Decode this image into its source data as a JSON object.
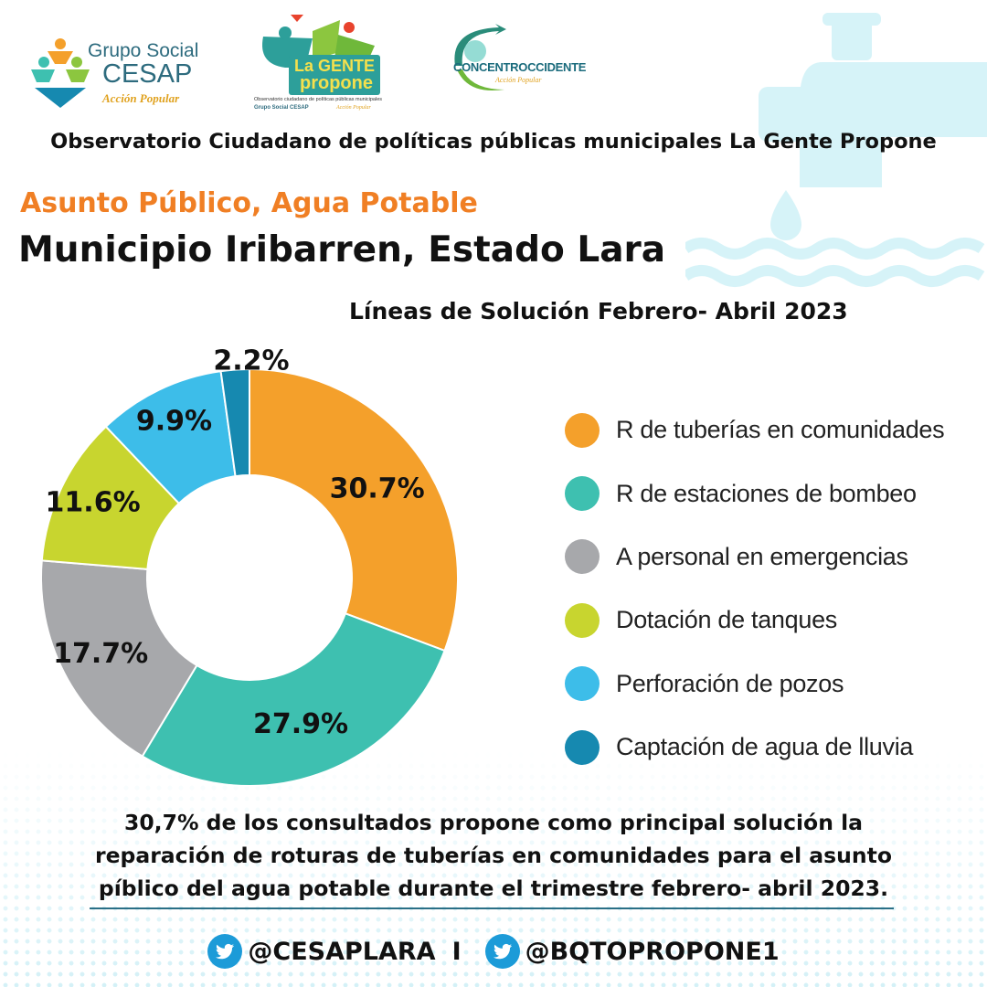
{
  "logos": {
    "cesap": {
      "line1": "Grupo Social",
      "line2": "CESAP",
      "line3": "Acción Popular"
    },
    "gente": {
      "line1": "La GENTE",
      "line2": "propone",
      "tagline": "Observatorio ciudadano de políticas públicas municipales",
      "footer_left": "Grupo Social CESAP",
      "footer_right": "Acción Popular"
    },
    "concentro": {
      "name": "CONCENTROCCIDENTE",
      "tagline": "Acción Popular"
    }
  },
  "header": {
    "observatorio": "Observatorio Ciudadano de políticas públicas municipales La Gente Propone",
    "topic": "Asunto Público, Agua Potable",
    "municipio": "Municipio Iribarren, Estado Lara"
  },
  "chart_data": {
    "type": "pie",
    "donut": true,
    "title": "Líneas de Solución Febrero- Abril 2023",
    "legend_position": "right",
    "categories": [
      "R de tuberías en comunidades",
      "R de estaciones de bombeo",
      "A personal en emergencias",
      "Dotación de tanques",
      "Perforación de pozos",
      "Captación de agua de lluvia"
    ],
    "values": [
      30.7,
      27.9,
      17.7,
      11.6,
      9.9,
      2.2
    ],
    "labels": [
      "30.7%",
      "27.9%",
      "17.7%",
      "11.6%",
      "9.9%",
      "2.2%"
    ],
    "colors": [
      "#f4a02b",
      "#3ec0b0",
      "#a7a8ab",
      "#c8d52f",
      "#3dbde9",
      "#1689b0"
    ]
  },
  "conclusion": {
    "line1": "30,7% de los consultados propone como principal solución la",
    "line2": "reparación de roturas de tuberías en comunidades para el asunto",
    "line3": "píblico del agua potable durante el trimestre febrero- abril 2023."
  },
  "socials": {
    "handle1": "@CESAPLARA",
    "separator": "I",
    "handle2": "@BQTOPROPONE1",
    "icon": "twitter-bird-icon",
    "icon_color": "#1c9bd8"
  }
}
